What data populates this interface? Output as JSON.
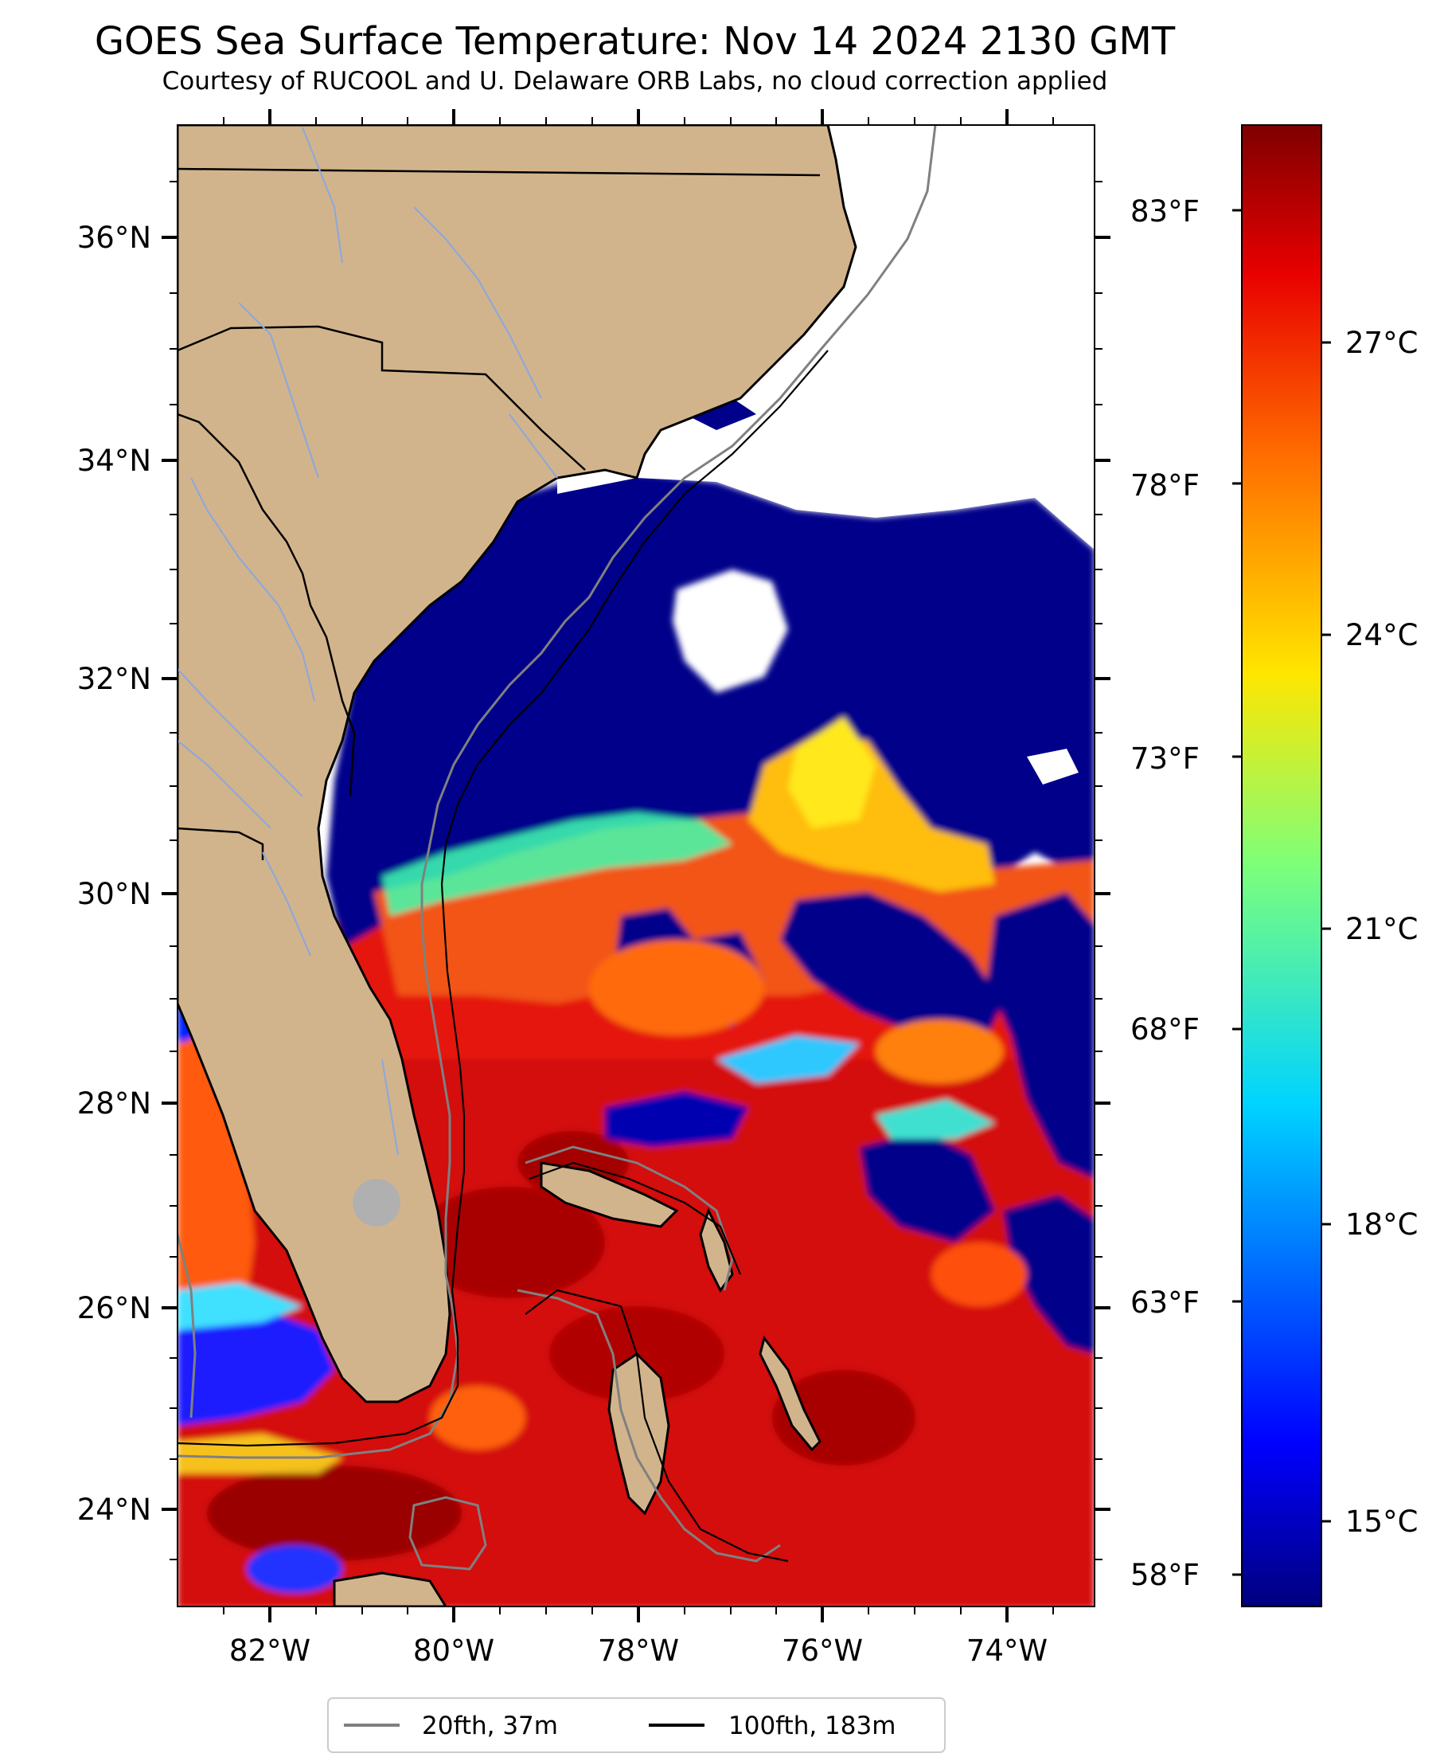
{
  "title": "GOES Sea Surface Temperature: Nov 14 2024 2130 GMT",
  "subtitle": "Courtesy of RUCOOL and U. Delaware ORB Labs, no cloud correction applied",
  "map": {
    "lat_labels": [
      "36°N",
      "34°N",
      "32°N",
      "30°N",
      "28°N",
      "26°N",
      "24°N"
    ],
    "lon_labels": [
      "82°W",
      "80°W",
      "78°W",
      "76°W",
      "74°W"
    ],
    "land_color": "#d2b48c",
    "ocean_no_data_color": "#ffffff",
    "state_border_color": "#000000",
    "river_color": "#8fa8d8",
    "lake_color": "#b0b0b0"
  },
  "fahrenheit_labels": [
    "83°F",
    "78°F",
    "73°F",
    "68°F",
    "63°F",
    "58°F"
  ],
  "colorbar": {
    "celsius_labels": [
      "27°C",
      "24°C",
      "21°C",
      "18°C",
      "15°C"
    ],
    "colormap": "jet",
    "colors": [
      "#00007f",
      "#0000ff",
      "#007fff",
      "#00ffff",
      "#7fff7f",
      "#ffff00",
      "#ff7f00",
      "#ff0000",
      "#7f0000"
    ]
  },
  "legend": {
    "items": [
      {
        "label": "20fth, 37m",
        "color": "#808080"
      },
      {
        "label": "100fth, 183m",
        "color": "#000000"
      }
    ]
  }
}
